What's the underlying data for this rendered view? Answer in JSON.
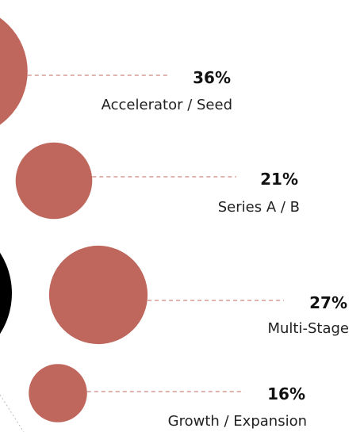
{
  "chart_data": {
    "type": "bubble",
    "categories": [
      "Accelerator / Seed",
      "Series A / B",
      "Multi-Stage",
      "Growth / Expansion"
    ],
    "values": [
      36,
      21,
      27,
      16
    ],
    "value_labels": [
      "36%",
      "21%",
      "27%",
      "16%"
    ],
    "color": "#c0675d"
  }
}
